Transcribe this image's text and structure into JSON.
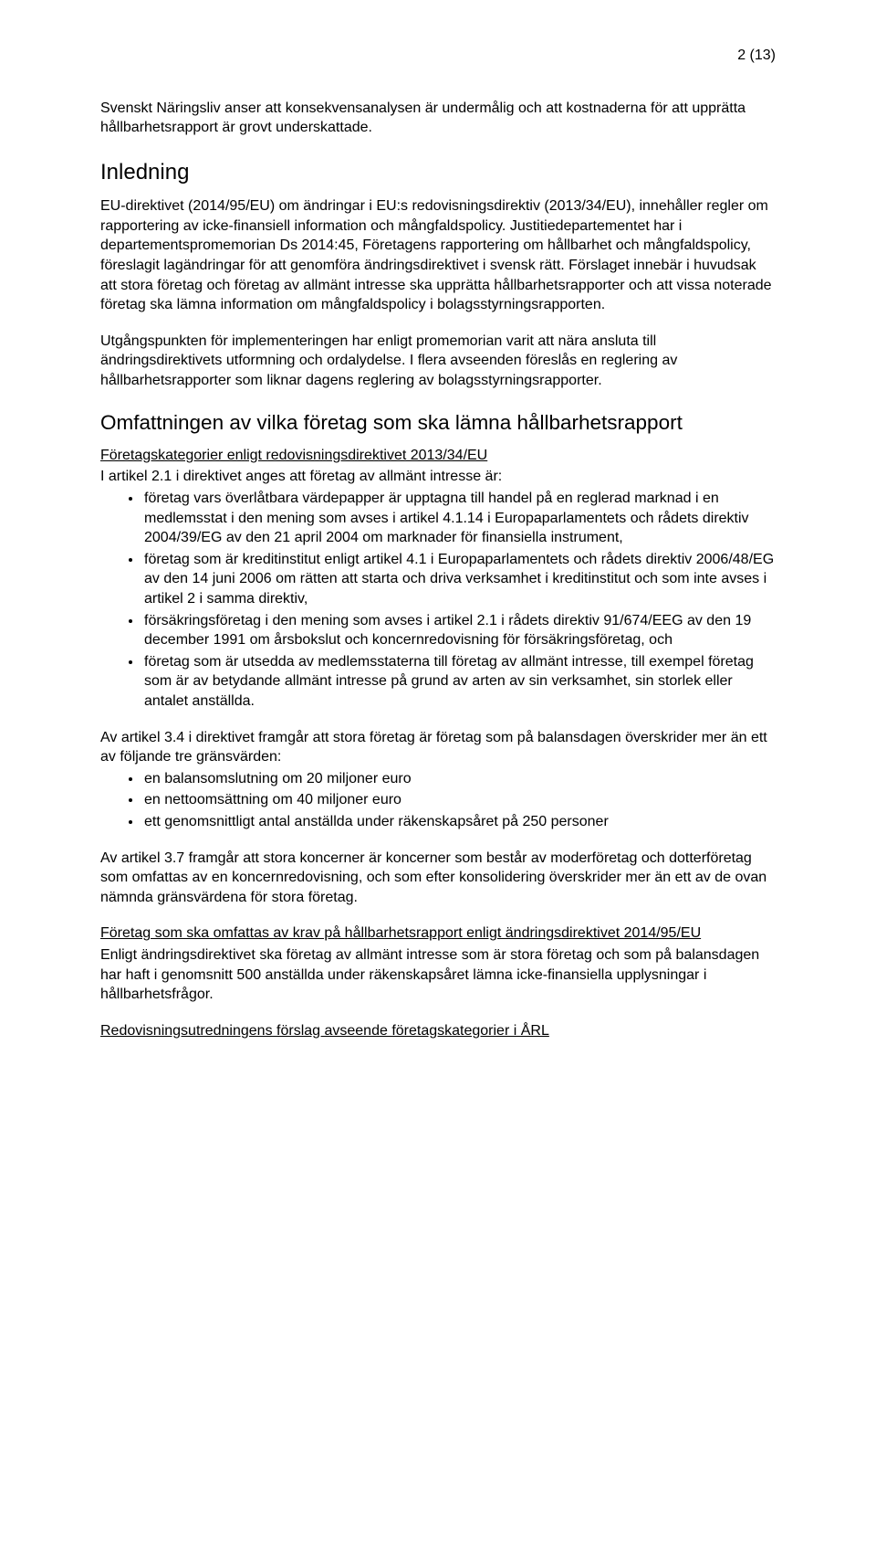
{
  "page_number": "2 (13)",
  "intro_para": "Svenskt Näringsliv anser att konsekvensanalysen är undermålig och att kostnaderna för att upprätta hållbarhetsrapport är grovt underskattade.",
  "h_inledning": "Inledning",
  "inledning_p1": "EU-direktivet (2014/95/EU) om ändringar i EU:s redovisningsdirektiv (2013/34/EU), innehåller regler om rapportering av icke-finansiell information och mångfaldspolicy. Justitiedepartementet har i departementspromemorian Ds 2014:45, Företagens rapportering om hållbarhet och mångfaldspolicy, föreslagit lagändringar för att genomföra ändringsdirektivet i svensk rätt. Förslaget innebär i huvudsak att stora företag och företag av allmänt intresse ska upprätta hållbarhetsrapporter och att vissa noterade företag ska lämna information om mångfaldspolicy i bolagsstyrningsrapporten.",
  "inledning_p2": "Utgångspunkten för implementeringen har enligt promemorian varit att nära ansluta till ändringsdirektivets utformning och ordalydelse. I flera avseenden föreslås en reglering av hållbarhetsrapporter som liknar dagens reglering av bolagsstyrningsrapporter.",
  "h_omf": "Omfattningen av vilka företag som ska lämna hållbarhetsrapport",
  "sub_kategorier": "Företagskategorier enligt redovisningsdirektivet 2013/34/EU",
  "art21_lead": "I artikel 2.1 i direktivet anges att företag av allmänt intresse är:",
  "art21_b1": "företag vars överlåtbara värdepapper är upptagna till handel på en reglerad marknad i en medlemsstat i den mening som avses i artikel 4.1.14 i Europaparlamentets och rådets direktiv 2004/39/EG av den 21 april 2004 om marknader för finansiella instrument,",
  "art21_b2": "företag som är kreditinstitut enligt artikel 4.1 i Europaparlamentets och rådets direktiv 2006/48/EG av den 14 juni 2006 om rätten att starta och driva verksamhet i kreditinstitut och som inte avses i artikel 2 i samma direktiv,",
  "art21_b3": "försäkringsföretag i den mening som avses i artikel 2.1 i rådets direktiv 91/674/EEG av den 19 december 1991 om årsbokslut och koncernredovisning för försäkringsföretag, och",
  "art21_b4": "företag som är utsedda av medlemsstaterna till företag av allmänt intresse, till exempel företag som är av betydande allmänt intresse på grund av arten av sin verksamhet, sin storlek eller antalet anställda.",
  "art34_lead": "Av artikel 3.4 i direktivet framgår att stora företag är företag som på balansdagen överskrider mer än ett av följande tre gränsvärden:",
  "art34_b1": "en balansomslutning om 20 miljoner euro",
  "art34_b2": "en nettoomsättning om 40 miljoner euro",
  "art34_b3": "ett genomsnittligt antal anställda under räkenskapsåret på 250 personer",
  "art37_para": "Av artikel 3.7 framgår att stora koncerner är koncerner som består av moderföretag och dotterföretag som omfattas av en koncernredovisning, och som efter konsolidering överskrider mer än ett av de ovan nämnda gränsvärdena för stora företag.",
  "sub_foretag": "Företag som ska omfattas av krav på hållbarhetsrapport enligt ändringsdirektivet 2014/95/EU",
  "foretag_para": "Enligt ändringsdirektivet ska företag av allmänt intresse som är stora företag och som på balansdagen har haft i genomsnitt 500 anställda under räkenskapsåret lämna icke-finansiella upplysningar i hållbarhetsfrågor.",
  "sub_redov": "Redovisningsutredningens förslag avseende företagskategorier i ÅRL"
}
